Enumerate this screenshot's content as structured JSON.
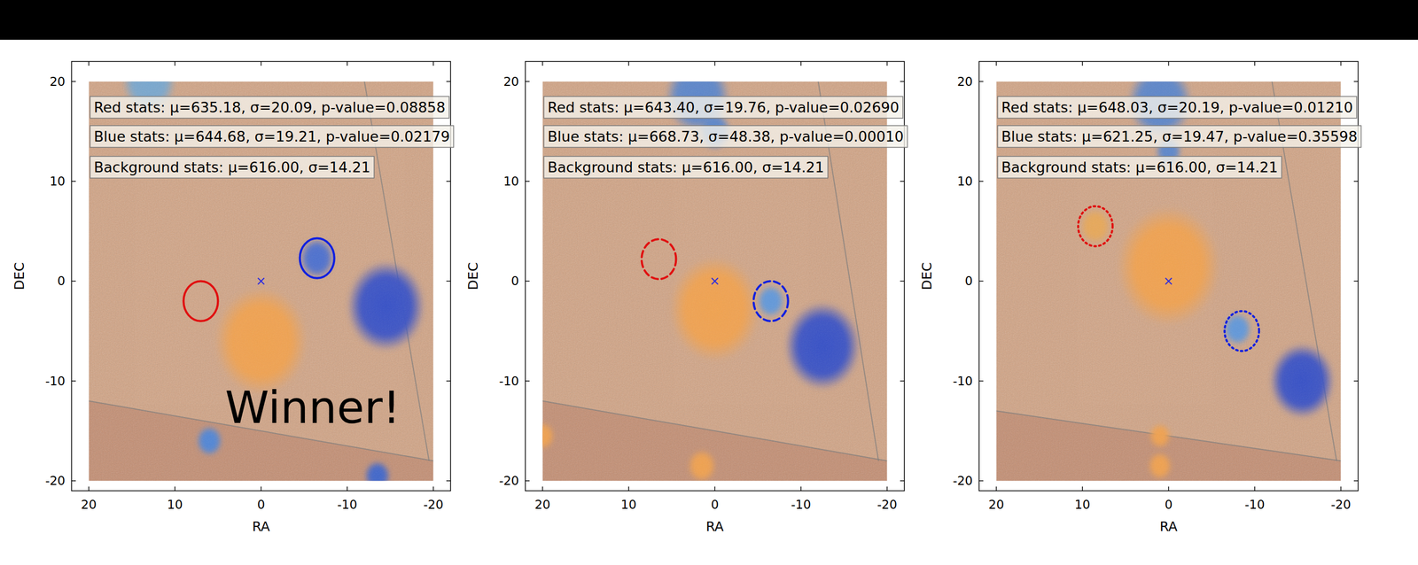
{
  "chart_data": [
    {
      "type": "image",
      "x_label": "RA",
      "y_label": "DEC",
      "xlim": [
        22,
        -22
      ],
      "ylim": [
        -21,
        22
      ],
      "xticks": [
        20,
        10,
        0,
        -10,
        -20
      ],
      "yticks": [
        -20,
        -10,
        0,
        10,
        20
      ],
      "image_extent": {
        "x": [
          20,
          -20
        ],
        "y": [
          -20,
          20
        ]
      },
      "color": "#d3a484",
      "stats": [
        "Red stats: μ=635.18, σ=20.09, p-value=0.08858",
        "Blue stats: μ=644.68, σ=19.21, p-value=0.02179",
        "Background stats: μ=616.00, σ=14.21"
      ],
      "annotation": {
        "text": "Winner!",
        "x": -6,
        "y": -13
      },
      "center": {
        "x": 0,
        "y": 0,
        "marker": "x"
      },
      "sources": [
        {
          "x": 0,
          "y": -6,
          "r": 4.3,
          "color": "#f2a24e"
        },
        {
          "x": -14.5,
          "y": -2.5,
          "r": 3.6,
          "color": "#3550c8"
        },
        {
          "x": -6.5,
          "y": 2.3,
          "r": 1.6,
          "color": "#4a6fd0"
        },
        {
          "x": 6,
          "y": -16,
          "r": 1.2,
          "color": "#4f86d8"
        },
        {
          "x": -13.5,
          "y": -19.5,
          "r": 1.2,
          "color": "#3f66cc"
        },
        {
          "x": 13,
          "y": 20,
          "r": 2.5,
          "color": "#78a8d0"
        }
      ],
      "regions": [
        {
          "x": 7,
          "y": -2,
          "r": 2,
          "color": "#e01010",
          "line_style": "solid"
        },
        {
          "x": -6.5,
          "y": 2.3,
          "r": 2,
          "color": "#1020e0",
          "line_style": "solid"
        }
      ],
      "edges": [
        {
          "x": [
            20,
            -20
          ],
          "y": [
            -12,
            -18
          ]
        },
        {
          "x": [
            -12,
            -19.5
          ],
          "y": [
            20,
            -18
          ]
        }
      ]
    },
    {
      "type": "image",
      "x_label": "RA",
      "y_label": "DEC",
      "xlim": [
        22,
        -22
      ],
      "ylim": [
        -21,
        22
      ],
      "xticks": [
        20,
        10,
        0,
        -10,
        -20
      ],
      "yticks": [
        -20,
        -10,
        0,
        10,
        20
      ],
      "image_extent": {
        "x": [
          20,
          -20
        ],
        "y": [
          -20,
          20
        ]
      },
      "color": "#d3a484",
      "stats": [
        "Red stats: μ=643.40, σ=19.76, p-value=0.02690",
        "Blue stats: μ=668.73, σ=48.38, p-value=0.00010",
        "Background stats: μ=616.00, σ=14.21"
      ],
      "center": {
        "x": 0,
        "y": 0,
        "marker": "x"
      },
      "sources": [
        {
          "x": 0,
          "y": -2.8,
          "r": 4.2,
          "color": "#f2a24e"
        },
        {
          "x": -12.5,
          "y": -6.5,
          "r": 3.5,
          "color": "#3550c8"
        },
        {
          "x": -6.5,
          "y": -2,
          "r": 1.3,
          "color": "#5f98dc"
        },
        {
          "x": 1.5,
          "y": -18.5,
          "r": 1.3,
          "color": "#f2a24e"
        },
        {
          "x": 20,
          "y": -15.5,
          "r": 1.1,
          "color": "#f2a24e"
        },
        {
          "x": 2,
          "y": 18.5,
          "r": 3,
          "color": "#5a86cc"
        },
        {
          "x": 0,
          "y": 15,
          "r": 1.5,
          "color": "#5a86cc"
        }
      ],
      "regions": [
        {
          "x": 6.5,
          "y": 2.2,
          "r": 2,
          "color": "#e01010",
          "line_style": "dashed"
        },
        {
          "x": -6.5,
          "y": -2,
          "r": 2,
          "color": "#1020e0",
          "line_style": "dashed"
        }
      ],
      "edges": [
        {
          "x": [
            20,
            -20
          ],
          "y": [
            -12,
            -18
          ]
        },
        {
          "x": [
            -12,
            -19
          ],
          "y": [
            20,
            -18
          ]
        }
      ]
    },
    {
      "type": "image",
      "x_label": "RA",
      "y_label": "DEC",
      "xlim": [
        22,
        -22
      ],
      "ylim": [
        -21,
        22
      ],
      "xticks": [
        20,
        10,
        0,
        -10,
        -20
      ],
      "yticks": [
        -20,
        -10,
        0,
        10,
        20
      ],
      "image_extent": {
        "x": [
          20,
          -20
        ],
        "y": [
          -20,
          20
        ]
      },
      "color": "#d3a484",
      "stats": [
        "Red stats: μ=648.03, σ=20.19, p-value=0.01210",
        "Blue stats: μ=621.25, σ=19.47, p-value=0.35598",
        "Background stats: μ=616.00, σ=14.21"
      ],
      "center": {
        "x": 0,
        "y": 0,
        "marker": "x"
      },
      "sources": [
        {
          "x": 0,
          "y": 1.5,
          "r": 4.8,
          "color": "#f2a24e"
        },
        {
          "x": -15.5,
          "y": -10,
          "r": 3,
          "color": "#3550c8"
        },
        {
          "x": -8,
          "y": -4.8,
          "r": 1.3,
          "color": "#5f98dc"
        },
        {
          "x": 1,
          "y": -15.5,
          "r": 1,
          "color": "#f2a24e"
        },
        {
          "x": 1,
          "y": -18.5,
          "r": 1.1,
          "color": "#f2a24e"
        },
        {
          "x": 8.5,
          "y": 5.5,
          "r": 1.4,
          "color": "#e8a858"
        },
        {
          "x": 1,
          "y": 18,
          "r": 3,
          "color": "#5a86cc"
        },
        {
          "x": 0,
          "y": 13,
          "r": 1.2,
          "color": "#5a86cc"
        }
      ],
      "regions": [
        {
          "x": 8.5,
          "y": 5.5,
          "r": 2,
          "color": "#e01010",
          "line_style": "dotted"
        },
        {
          "x": -8.5,
          "y": -5,
          "r": 2,
          "color": "#1020e0",
          "line_style": "dotted"
        }
      ],
      "edges": [
        {
          "x": [
            20,
            -20
          ],
          "y": [
            -13,
            -18
          ]
        },
        {
          "x": [
            -12,
            -19.5
          ],
          "y": [
            20,
            -18
          ]
        }
      ]
    }
  ]
}
